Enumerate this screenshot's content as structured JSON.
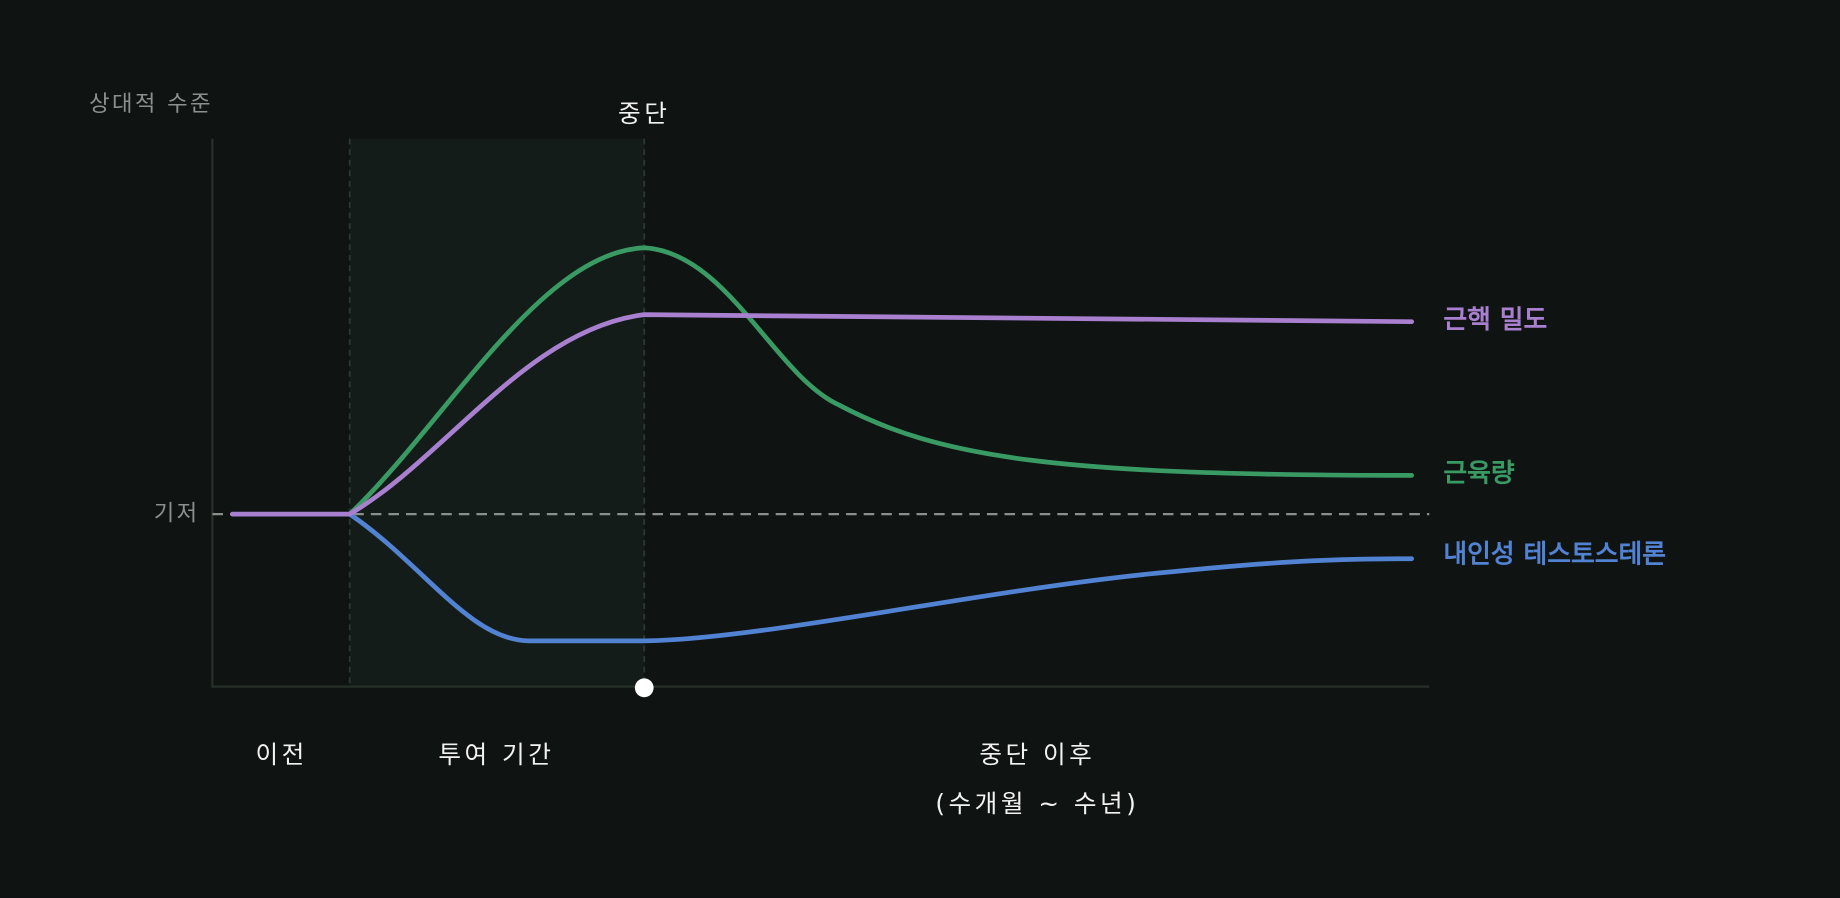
{
  "axis": {
    "y_label": "상대적 수준",
    "baseline": "기저"
  },
  "marker": {
    "label": "중단"
  },
  "phases": [
    {
      "label": "이전"
    },
    {
      "label": "투여 기간"
    },
    {
      "label": "중단 이후",
      "sublabel": "(수개월 ~ 수년)"
    }
  ],
  "series": [
    {
      "label": "근핵 밀도",
      "color": "#a97fd0"
    },
    {
      "label": "근육량",
      "color": "#3a9a63"
    },
    {
      "label": "내인성 테스토스테론",
      "color": "#5282d2"
    }
  ]
}
